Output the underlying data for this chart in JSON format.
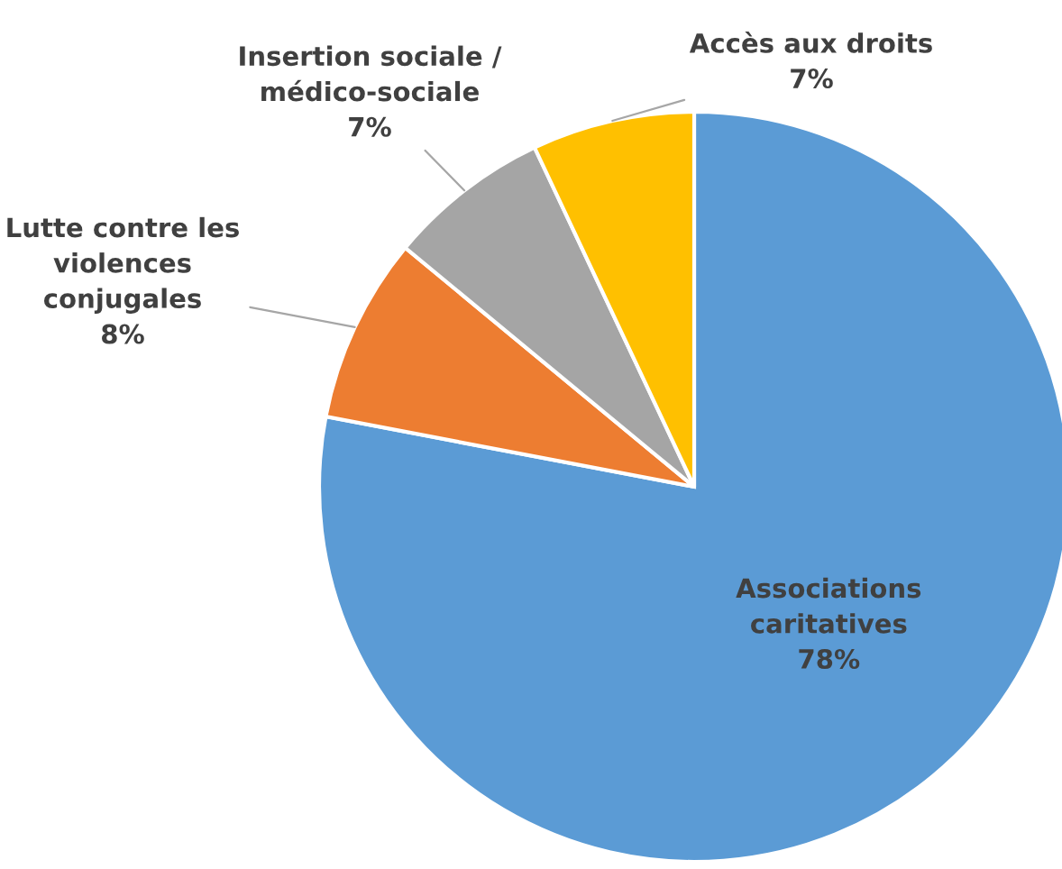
{
  "chart_data": {
    "type": "pie",
    "categories": [
      "Associations\ncaritatives",
      "Lutte contre les\nviolences\nconjugales",
      "Insertion sociale /\nmédico-sociale",
      "Accès aux droits"
    ],
    "values": [
      78,
      8,
      7,
      7
    ],
    "colors": [
      "#5b9bd5",
      "#ed7d31",
      "#a5a5a5",
      "#ffc000"
    ],
    "value_labels": [
      "78%",
      "8%",
      "7%",
      "7%"
    ]
  }
}
